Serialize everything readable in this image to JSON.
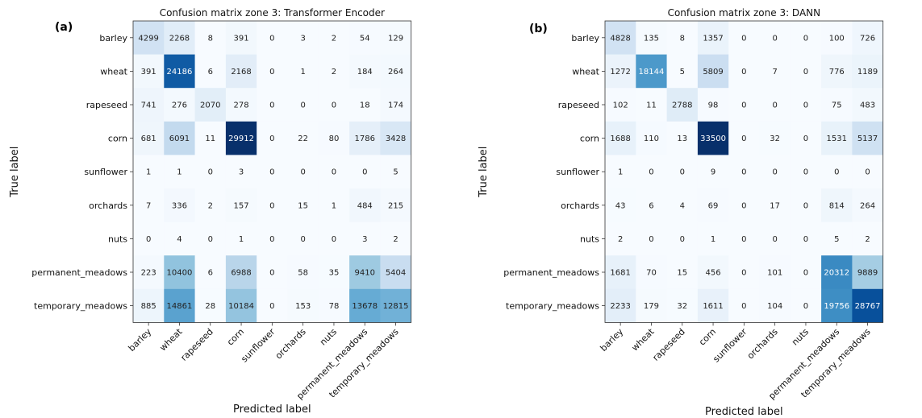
{
  "chart_data": [
    {
      "type": "heatmap",
      "panel_label": "(a)",
      "title": "Confusion matrix zone 3: Transformer Encoder",
      "xlabel": "Predicted label",
      "ylabel": "True label",
      "classes": [
        "barley",
        "wheat",
        "rapeseed",
        "corn",
        "sunflower",
        "orchards",
        "nuts",
        "permanent_meadows",
        "temporary_meadows"
      ],
      "colormap": "Blues",
      "matrix": [
        [
          4299,
          2268,
          8,
          391,
          0,
          3,
          2,
          54,
          129
        ],
        [
          391,
          24186,
          6,
          2168,
          0,
          1,
          2,
          184,
          264
        ],
        [
          741,
          276,
          2070,
          278,
          0,
          0,
          0,
          18,
          174
        ],
        [
          681,
          6091,
          11,
          29912,
          0,
          22,
          80,
          1786,
          3428
        ],
        [
          1,
          1,
          0,
          3,
          0,
          0,
          0,
          0,
          5
        ],
        [
          7,
          336,
          2,
          157,
          0,
          15,
          1,
          484,
          215
        ],
        [
          0,
          4,
          0,
          1,
          0,
          0,
          0,
          3,
          2
        ],
        [
          223,
          10400,
          6,
          6988,
          0,
          58,
          35,
          9410,
          5404
        ],
        [
          885,
          14861,
          28,
          10184,
          0,
          153,
          78,
          13678,
          12815
        ]
      ]
    },
    {
      "type": "heatmap",
      "panel_label": "(b)",
      "title": "Confusion matrix zone 3: DANN",
      "xlabel": "Predicted label",
      "ylabel": "True label",
      "classes": [
        "barley",
        "wheat",
        "rapeseed",
        "corn",
        "sunflower",
        "orchards",
        "nuts",
        "permanent_meadows",
        "temporary_meadows"
      ],
      "colormap": "Blues",
      "matrix": [
        [
          4828,
          135,
          8,
          1357,
          0,
          0,
          0,
          100,
          726
        ],
        [
          1272,
          18144,
          5,
          5809,
          0,
          7,
          0,
          776,
          1189
        ],
        [
          102,
          11,
          2788,
          98,
          0,
          0,
          0,
          75,
          483
        ],
        [
          1688,
          110,
          13,
          33500,
          0,
          32,
          0,
          1531,
          5137
        ],
        [
          1,
          0,
          0,
          9,
          0,
          0,
          0,
          0,
          0
        ],
        [
          43,
          6,
          4,
          69,
          0,
          17,
          0,
          814,
          264
        ],
        [
          2,
          0,
          0,
          1,
          0,
          0,
          0,
          5,
          2
        ],
        [
          1681,
          70,
          15,
          456,
          0,
          101,
          0,
          20312,
          9889
        ],
        [
          2233,
          179,
          32,
          1611,
          0,
          104,
          0,
          19756,
          28767
        ]
      ]
    }
  ]
}
